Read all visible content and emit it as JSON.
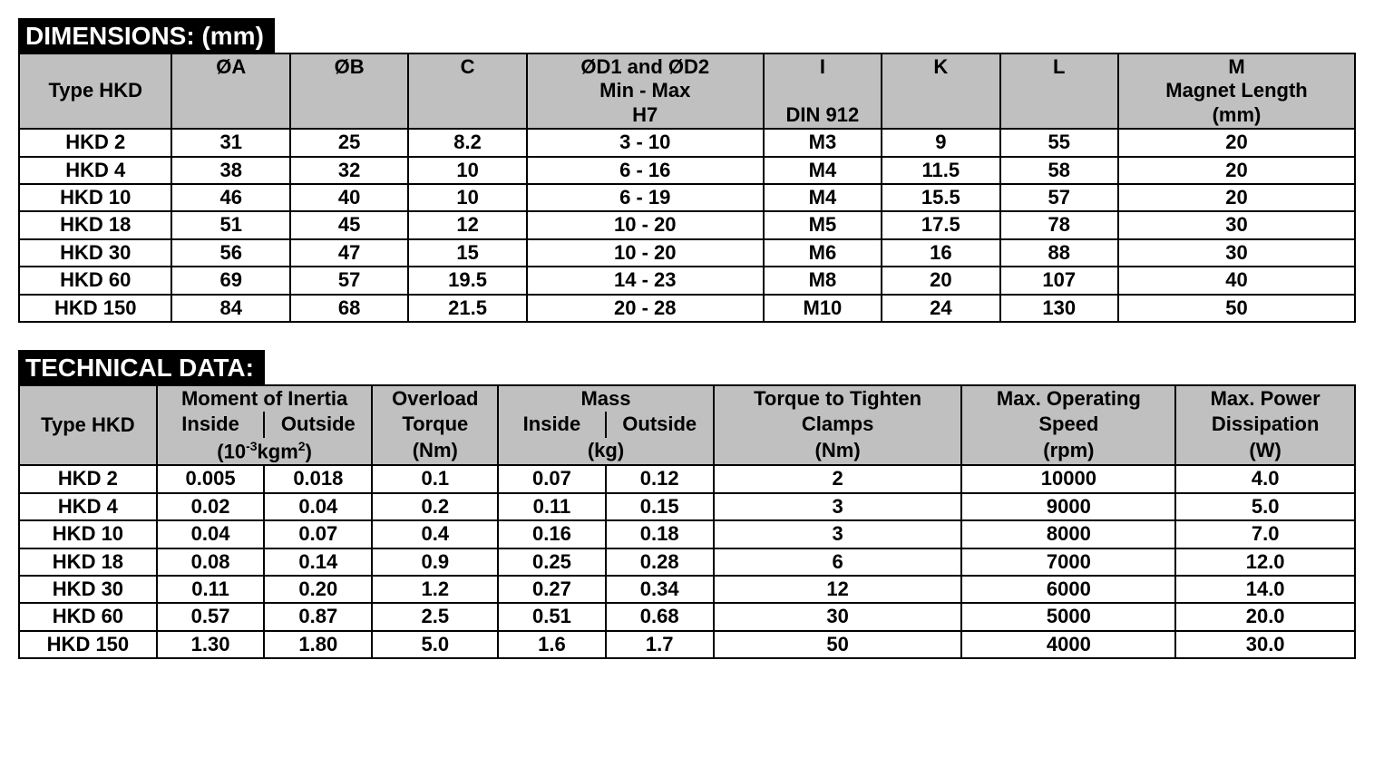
{
  "dimensions": {
    "title": "DIMENSIONS: (mm)",
    "headers": {
      "type": "Type HKD",
      "oa": "ØA",
      "ob": "ØB",
      "c": "C",
      "od": "ØD1 and ØD2",
      "od_sub1": "Min - Max",
      "od_sub2": "H7",
      "i": "I",
      "i_sub": "DIN 912",
      "k": "K",
      "l": "L",
      "m": "M",
      "m_sub1": "Magnet Length",
      "m_sub2": "(mm)"
    },
    "rows": [
      {
        "type": "HKD 2",
        "oa": "31",
        "ob": "25",
        "c": "8.2",
        "od": "3 - 10",
        "i": "M3",
        "k": "9",
        "l": "55",
        "m": "20"
      },
      {
        "type": "HKD 4",
        "oa": "38",
        "ob": "32",
        "c": "10",
        "od": "6 - 16",
        "i": "M4",
        "k": "11.5",
        "l": "58",
        "m": "20"
      },
      {
        "type": "HKD 10",
        "oa": "46",
        "ob": "40",
        "c": "10",
        "od": "6 - 19",
        "i": "M4",
        "k": "15.5",
        "l": "57",
        "m": "20"
      },
      {
        "type": "HKD 18",
        "oa": "51",
        "ob": "45",
        "c": "12",
        "od": "10 - 20",
        "i": "M5",
        "k": "17.5",
        "l": "78",
        "m": "30"
      },
      {
        "type": "HKD 30",
        "oa": "56",
        "ob": "47",
        "c": "15",
        "od": "10 - 20",
        "i": "M6",
        "k": "16",
        "l": "88",
        "m": "30"
      },
      {
        "type": "HKD 60",
        "oa": "69",
        "ob": "57",
        "c": "19.5",
        "od": "14 - 23",
        "i": "M8",
        "k": "20",
        "l": "107",
        "m": "40"
      },
      {
        "type": "HKD 150",
        "oa": "84",
        "ob": "68",
        "c": "21.5",
        "od": "20 - 28",
        "i": "M10",
        "k": "24",
        "l": "130",
        "m": "50"
      }
    ],
    "col_widths": [
      "155px",
      "120px",
      "120px",
      "120px",
      "240px",
      "120px",
      "120px",
      "120px",
      "240px"
    ]
  },
  "technical": {
    "title": "TECHNICAL DATA:",
    "headers": {
      "type": "Type HKD",
      "moi": "Moment of Inertia",
      "moi_inside": "Inside",
      "moi_outside": "Outside",
      "moi_unit_prefix": "(10",
      "moi_unit_exp": "-3",
      "moi_unit_mid": "kgm",
      "moi_unit_sup2": "2",
      "moi_unit_suffix": ")",
      "overload": "Overload",
      "overload_sub1": "Torque",
      "overload_sub2": "(Nm)",
      "mass": "Mass",
      "mass_inside": "Inside",
      "mass_outside": "Outside",
      "mass_unit": "(kg)",
      "tighten": "Torque to Tighten",
      "tighten_sub1": "Clamps",
      "tighten_sub2": "(Nm)",
      "speed": "Max. Operating",
      "speed_sub1": "Speed",
      "speed_sub2": "(rpm)",
      "power": "Max. Power",
      "power_sub1": "Dissipation",
      "power_sub2": "(W)"
    },
    "rows": [
      {
        "type": "HKD 2",
        "moi_in": "0.005",
        "moi_out": "0.018",
        "overload": "0.1",
        "mass_in": "0.07",
        "mass_out": "0.12",
        "tighten": "2",
        "speed": "10000",
        "power": "4.0"
      },
      {
        "type": "HKD 4",
        "moi_in": "0.02",
        "moi_out": "0.04",
        "overload": "0.2",
        "mass_in": "0.11",
        "mass_out": "0.15",
        "tighten": "3",
        "speed": "9000",
        "power": "5.0"
      },
      {
        "type": "HKD 10",
        "moi_in": "0.04",
        "moi_out": "0.07",
        "overload": "0.4",
        "mass_in": "0.16",
        "mass_out": "0.18",
        "tighten": "3",
        "speed": "8000",
        "power": "7.0"
      },
      {
        "type": "HKD 18",
        "moi_in": "0.08",
        "moi_out": "0.14",
        "overload": "0.9",
        "mass_in": "0.25",
        "mass_out": "0.28",
        "tighten": "6",
        "speed": "7000",
        "power": "12.0"
      },
      {
        "type": "HKD 30",
        "moi_in": "0.11",
        "moi_out": "0.20",
        "overload": "1.2",
        "mass_in": "0.27",
        "mass_out": "0.34",
        "tighten": "12",
        "speed": "6000",
        "power": "14.0"
      },
      {
        "type": "HKD 60",
        "moi_in": "0.57",
        "moi_out": "0.87",
        "overload": "2.5",
        "mass_in": "0.51",
        "mass_out": "0.68",
        "tighten": "30",
        "speed": "5000",
        "power": "20.0"
      },
      {
        "type": "HKD 150",
        "moi_in": "1.30",
        "moi_out": "1.80",
        "overload": "5.0",
        "mass_in": "1.6",
        "mass_out": "1.7",
        "tighten": "50",
        "speed": "4000",
        "power": "30.0"
      }
    ],
    "col_widths": [
      "155px",
      "120px",
      "120px",
      "140px",
      "120px",
      "120px",
      "280px",
      "240px",
      "200px"
    ]
  }
}
